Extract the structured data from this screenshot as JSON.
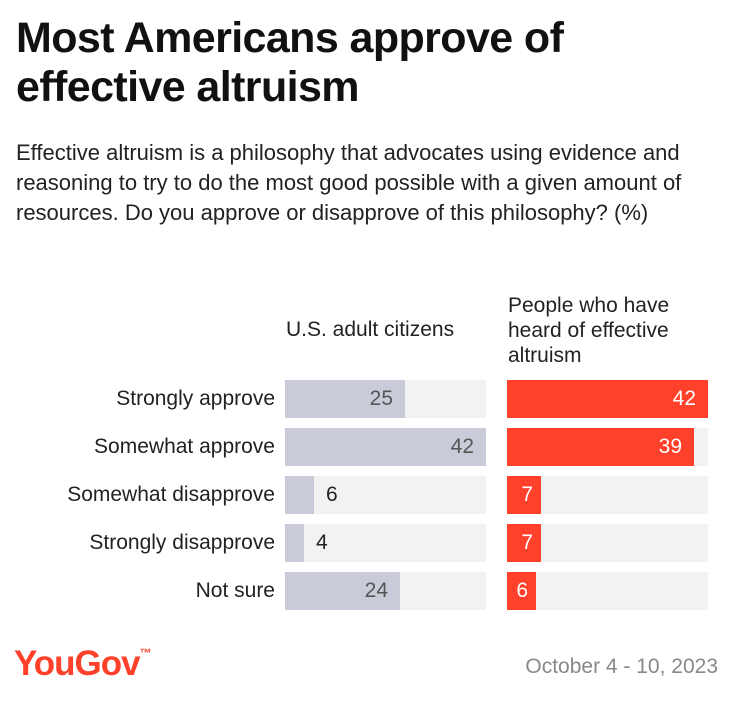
{
  "title": "Most Americans approve of effective altruism",
  "subtitle": "Effective altruism is a philosophy that advocates using evidence and reasoning to try to do the most good possible with a given amount of resources. Do you approve or disapprove of this philosophy? (%)",
  "footer": {
    "logo": "YouGov",
    "date": "October 4 - 10, 2023"
  },
  "colors": {
    "us": "#c9ccd8",
    "heard": "#ff412c",
    "track": "#f2f2f2"
  },
  "chart_data": {
    "type": "bar",
    "orientation": "horizontal",
    "categories": [
      "Strongly approve",
      "Somewhat approve",
      "Somewhat disapprove",
      "Strongly disapprove",
      "Not sure"
    ],
    "series": [
      {
        "name": "U.S. adult citizens",
        "values": [
          25,
          42,
          6,
          4,
          24
        ]
      },
      {
        "name": "People who have heard of effective altruism",
        "values": [
          42,
          39,
          7,
          7,
          6
        ]
      }
    ],
    "xlim": [
      0,
      42
    ],
    "title": "Most Americans approve of effective altruism",
    "xlabel": "",
    "ylabel": ""
  }
}
